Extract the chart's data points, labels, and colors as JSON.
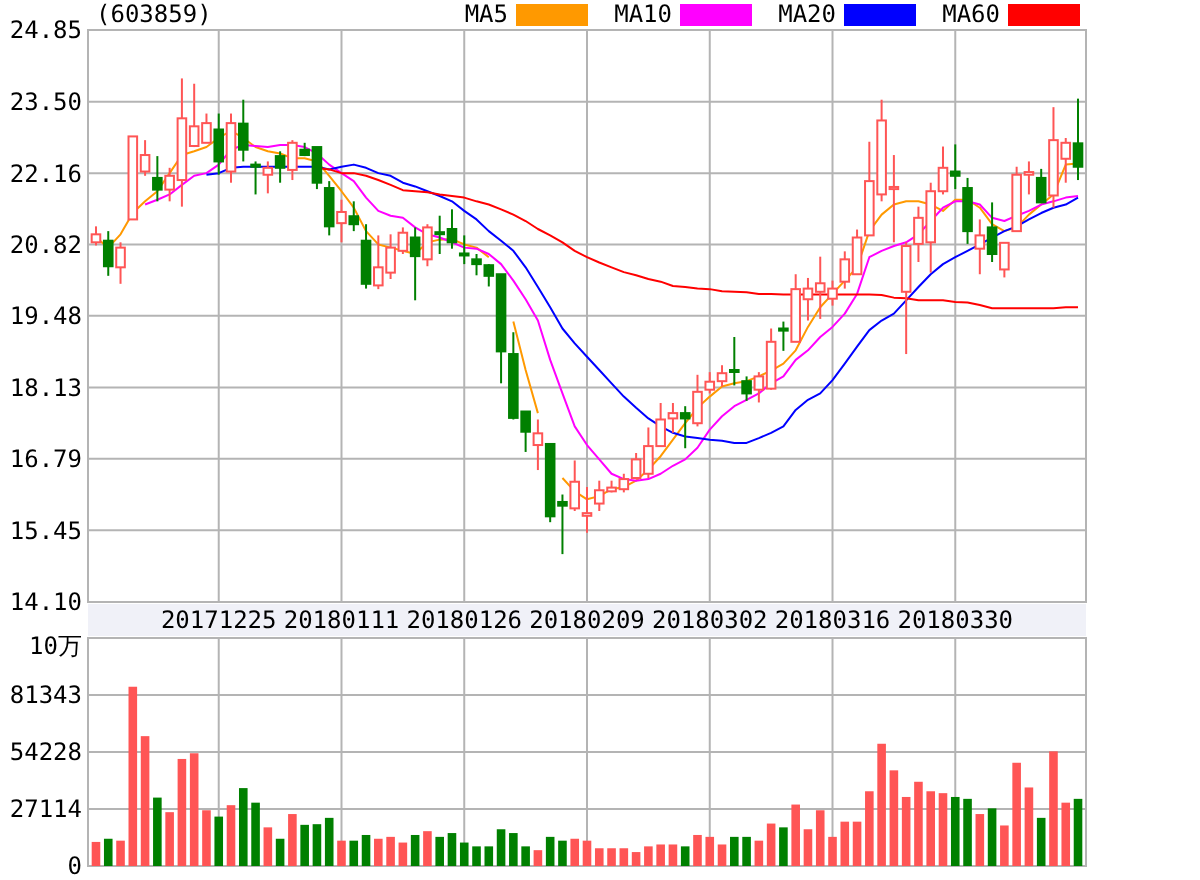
{
  "chart_data": [
    {
      "type": "candlestick",
      "title": "(603859)",
      "legend": "top",
      "grid": true,
      "categories": [
        null,
        null,
        null,
        null,
        null,
        null,
        null,
        null,
        null,
        null,
        "20171225",
        null,
        null,
        null,
        null,
        null,
        null,
        null,
        null,
        null,
        "20180111",
        null,
        null,
        null,
        null,
        null,
        null,
        null,
        null,
        null,
        "20180126",
        null,
        null,
        null,
        null,
        null,
        null,
        null,
        null,
        null,
        "20180209",
        null,
        null,
        null,
        null,
        null,
        null,
        null,
        null,
        null,
        "20180302",
        null,
        null,
        null,
        null,
        null,
        null,
        null,
        null,
        null,
        "20180316",
        null,
        null,
        null,
        null,
        null,
        null,
        null,
        null,
        null,
        "20180330",
        null,
        null,
        null,
        null,
        null,
        null,
        null,
        null,
        null,
        null
      ],
      "ylim": [
        14.1,
        24.85
      ],
      "yticks": [
        {
          "value": 14.1,
          "label": "14.10"
        },
        15.45,
        16.79,
        18.13,
        19.48,
        20.82,
        22.16,
        {
          "value": 23.5,
          "label": "23.50"
        },
        24.85
      ],
      "ohlc": [
        [
          20.86,
          21.16,
          20.8,
          21.01
        ],
        [
          20.89,
          21.07,
          20.23,
          20.41
        ],
        [
          20.39,
          20.86,
          20.08,
          20.76
        ],
        [
          21.29,
          22.85,
          21.29,
          22.85
        ],
        [
          22.19,
          22.78,
          22.11,
          22.5
        ],
        [
          22.07,
          22.48,
          21.63,
          21.85
        ],
        [
          21.85,
          22.26,
          21.63,
          22.11
        ],
        [
          22.03,
          23.94,
          21.53,
          23.19
        ],
        [
          22.67,
          23.84,
          22.65,
          23.04
        ],
        [
          22.73,
          23.28,
          22.73,
          23.1
        ],
        [
          22.98,
          23.28,
          22.13,
          22.38
        ],
        [
          22.19,
          23.28,
          21.98,
          23.1
        ],
        [
          23.09,
          23.54,
          22.38,
          22.6
        ],
        [
          22.32,
          22.38,
          21.76,
          22.28
        ],
        [
          22.13,
          22.38,
          21.78,
          22.26
        ],
        [
          22.48,
          22.57,
          21.98,
          22.26
        ],
        [
          22.22,
          22.78,
          22.03,
          22.73
        ],
        [
          22.6,
          22.73,
          22.48,
          22.5
        ],
        [
          22.65,
          22.65,
          21.86,
          21.98
        ],
        [
          21.88,
          22.01,
          20.99,
          21.16
        ],
        [
          21.22,
          21.66,
          20.86,
          21.43
        ],
        [
          21.35,
          21.63,
          21.07,
          21.2
        ],
        [
          20.89,
          21.2,
          19.99,
          20.08
        ],
        [
          20.05,
          20.99,
          19.98,
          20.39
        ],
        [
          20.29,
          21.01,
          20.17,
          20.76
        ],
        [
          20.7,
          21.14,
          20.64,
          21.04
        ],
        [
          20.95,
          21.14,
          19.77,
          20.6
        ],
        [
          20.54,
          21.2,
          20.41,
          21.14
        ],
        [
          21.05,
          21.36,
          20.64,
          21.03
        ],
        [
          21.11,
          21.48,
          20.74,
          20.86
        ],
        [
          20.65,
          20.99,
          20.45,
          20.64
        ],
        [
          20.54,
          20.64,
          20.24,
          20.45
        ],
        [
          20.43,
          20.45,
          20.03,
          20.23
        ],
        [
          20.26,
          20.26,
          18.21,
          18.81
        ],
        [
          18.76,
          19.17,
          17.53,
          17.56
        ],
        [
          17.68,
          17.68,
          16.92,
          17.3
        ],
        [
          17.05,
          17.53,
          16.58,
          17.27
        ],
        [
          17.07,
          17.07,
          15.6,
          15.71
        ],
        [
          15.98,
          16.12,
          15.0,
          15.91
        ],
        [
          15.86,
          16.76,
          15.81,
          16.36
        ],
        [
          15.72,
          16.26,
          15.4,
          15.77
        ],
        [
          15.95,
          16.38,
          15.81,
          16.2
        ],
        [
          16.18,
          16.38,
          16.16,
          16.25
        ],
        [
          16.22,
          16.51,
          16.16,
          16.41
        ],
        [
          16.43,
          16.9,
          16.41,
          16.78
        ],
        [
          16.51,
          17.38,
          16.43,
          17.03
        ],
        [
          17.03,
          17.84,
          17.03,
          17.53
        ],
        [
          17.55,
          17.84,
          17.28,
          17.65
        ],
        [
          17.65,
          17.78,
          16.99,
          17.55
        ],
        [
          17.46,
          18.37,
          17.4,
          18.05
        ],
        [
          18.09,
          18.42,
          18.02,
          18.24
        ],
        [
          18.25,
          18.55,
          18.15,
          18.4
        ],
        [
          18.46,
          19.08,
          18.17,
          18.44
        ],
        [
          18.25,
          18.34,
          17.88,
          18.02
        ],
        [
          18.09,
          18.42,
          17.85,
          18.34
        ],
        [
          18.11,
          19.24,
          18.09,
          18.99
        ],
        [
          19.24,
          19.37,
          18.82,
          19.2
        ],
        [
          18.99,
          20.26,
          18.99,
          19.98
        ],
        [
          19.79,
          20.19,
          19.39,
          19.99
        ],
        [
          19.93,
          20.59,
          19.42,
          20.09
        ],
        [
          19.8,
          20.14,
          19.67,
          19.99
        ],
        [
          20.12,
          20.69,
          19.99,
          20.54
        ],
        [
          20.26,
          21.1,
          20.26,
          20.95
        ],
        [
          20.99,
          22.75,
          20.99,
          22.01
        ],
        [
          21.76,
          23.54,
          21.63,
          23.15
        ],
        [
          21.86,
          22.5,
          20.86,
          21.9
        ],
        [
          19.93,
          20.86,
          18.76,
          20.79
        ],
        [
          20.83,
          21.53,
          20.49,
          21.32
        ],
        [
          20.86,
          21.98,
          20.29,
          21.82
        ],
        [
          21.82,
          22.66,
          21.76,
          22.26
        ],
        [
          22.19,
          22.7,
          21.86,
          22.11
        ],
        [
          21.88,
          22.07,
          20.83,
          21.07
        ],
        [
          20.74,
          21.29,
          20.26,
          20.99
        ],
        [
          21.14,
          21.61,
          20.49,
          20.64
        ],
        [
          20.35,
          20.85,
          20.2,
          20.85
        ],
        [
          21.07,
          22.28,
          21.07,
          22.13
        ],
        [
          22.13,
          22.38,
          21.76,
          22.18
        ],
        [
          22.07,
          22.24,
          21.61,
          21.61
        ],
        [
          21.74,
          23.4,
          21.51,
          22.78
        ],
        [
          22.43,
          22.82,
          21.98,
          22.73
        ],
        [
          22.72,
          23.56,
          22.03,
          22.28
        ]
      ],
      "colors": [
        "#ff5555",
        "#008000",
        "#ff5555",
        "#ff5555",
        "#ff5555",
        "#008000",
        "#ff5555",
        "#ff5555",
        "#ff5555",
        "#ff5555",
        "#008000",
        "#ff5555",
        "#008000",
        "#008000",
        "#ff5555",
        "#008000",
        "#ff5555",
        "#008000",
        "#008000",
        "#008000",
        "#ff5555",
        "#008000",
        "#008000",
        "#ff5555",
        "#ff5555",
        "#ff5555",
        "#008000",
        "#ff5555",
        "#008000",
        "#008000",
        "#008000",
        "#008000",
        "#008000",
        "#008000",
        "#008000",
        "#008000",
        "#ff5555",
        "#008000",
        "#008000",
        "#ff5555",
        "#ff5555",
        "#ff5555",
        "#ff5555",
        "#ff5555",
        "#ff5555",
        "#ff5555",
        "#ff5555",
        "#ff5555",
        "#008000",
        "#ff5555",
        "#ff5555",
        "#ff5555",
        "#008000",
        "#008000",
        "#ff5555",
        "#ff5555",
        "#008000",
        "#ff5555",
        "#ff5555",
        "#ff5555",
        "#ff5555",
        "#ff5555",
        "#ff5555",
        "#ff5555",
        "#ff5555",
        "#ff5555",
        "#ff5555",
        "#ff5555",
        "#ff5555",
        "#ff5555",
        "#008000",
        "#008000",
        "#ff5555",
        "#008000",
        "#ff5555",
        "#ff5555",
        "#ff5555",
        "#008000",
        "#ff5555",
        "#ff5555",
        "#008000"
      ],
      "series": [
        {
          "name": "MA5",
          "type": "line",
          "color": "#ff9900",
          "values": [
            20.95,
            20.76,
            21.01,
            21.41,
            21.63,
            21.82,
            22.16,
            22.5,
            22.57,
            22.65,
            22.82,
            22.96,
            22.82,
            22.65,
            22.57,
            22.53,
            22.44,
            22.44,
            22.38,
            22.11,
            21.82,
            21.51,
            21.07,
            20.82,
            20.76,
            20.7,
            20.64,
            20.86,
            20.91,
            20.92,
            20.82,
            20.76,
            20.58,
            null,
            19.37,
            18.46,
            17.65,
            null,
            16.43,
            16.18,
            16.03,
            16.09,
            16.22,
            16.26,
            16.38,
            16.59,
            16.84,
            17.15,
            17.46,
            17.75,
            17.96,
            18.15,
            18.21,
            18.25,
            18.34,
            18.45,
            18.58,
            18.83,
            19.27,
            19.64,
            19.89,
            20.14,
            20.39,
            21.07,
            21.38,
            21.57,
            21.63,
            21.63,
            21.57,
            21.45,
            21.66,
            21.66,
            21.51,
            21.2,
            21.07,
            21.14,
            21.38,
            21.57,
            21.76,
            22.32,
            22.34
          ]
        },
        {
          "name": "MA10",
          "type": "line",
          "color": "#ff00ff",
          "values": [
            null,
            null,
            null,
            null,
            21.57,
            21.66,
            21.76,
            21.94,
            22.11,
            22.16,
            22.32,
            22.6,
            22.69,
            22.67,
            22.65,
            22.69,
            22.69,
            22.65,
            22.53,
            22.32,
            22.16,
            22.01,
            21.7,
            21.45,
            21.36,
            21.32,
            21.14,
            21.01,
            20.95,
            20.86,
            20.76,
            20.74,
            20.64,
            20.45,
            20.14,
            19.79,
            19.39,
            18.65,
            18.02,
            17.4,
            17.05,
            16.78,
            16.51,
            16.41,
            16.38,
            16.41,
            16.51,
            16.66,
            16.78,
            17.0,
            17.34,
            17.59,
            17.78,
            17.9,
            18.02,
            18.21,
            18.34,
            18.65,
            18.83,
            19.08,
            19.27,
            19.52,
            19.89,
            20.58,
            20.7,
            20.79,
            20.86,
            21.01,
            21.26,
            21.51,
            21.63,
            21.63,
            21.57,
            21.32,
            21.26,
            21.36,
            21.45,
            21.57,
            21.63,
            21.7,
            21.73
          ]
        },
        {
          "name": "MA20",
          "type": "line",
          "color": "#0000ff",
          "values": [
            null,
            null,
            null,
            null,
            null,
            null,
            null,
            null,
            null,
            22.13,
            22.16,
            22.26,
            22.28,
            22.28,
            22.28,
            22.28,
            22.28,
            22.28,
            22.28,
            22.23,
            22.28,
            22.32,
            22.26,
            22.16,
            22.11,
            21.98,
            21.91,
            21.82,
            21.73,
            21.63,
            21.45,
            21.29,
            21.07,
            20.89,
            20.7,
            20.39,
            20.02,
            19.64,
            19.24,
            18.96,
            18.71,
            18.46,
            18.21,
            17.96,
            17.75,
            17.55,
            17.4,
            17.28,
            17.21,
            17.18,
            17.15,
            17.13,
            17.09,
            17.09,
            17.18,
            17.28,
            17.4,
            17.71,
            17.9,
            18.02,
            18.27,
            18.58,
            18.9,
            19.21,
            19.39,
            19.52,
            19.77,
            20.02,
            20.26,
            20.45,
            20.58,
            20.7,
            20.82,
            20.95,
            21.07,
            21.16,
            21.29,
            21.41,
            21.51,
            21.57,
            21.7
          ]
        },
        {
          "name": "MA60",
          "type": "line",
          "color": "#ff0000",
          "values": [
            null,
            null,
            null,
            null,
            null,
            null,
            null,
            null,
            null,
            null,
            null,
            null,
            null,
            null,
            null,
            null,
            null,
            null,
            22.26,
            22.23,
            22.16,
            22.16,
            22.11,
            22.03,
            21.94,
            21.84,
            21.82,
            21.8,
            21.76,
            21.73,
            21.7,
            21.63,
            21.57,
            21.48,
            21.38,
            21.26,
            21.11,
            20.99,
            20.86,
            20.7,
            20.58,
            20.48,
            20.39,
            20.3,
            20.24,
            20.17,
            20.12,
            20.04,
            20.02,
            19.99,
            19.98,
            19.94,
            19.93,
            19.92,
            19.89,
            19.89,
            19.88,
            19.88,
            19.88,
            19.88,
            19.88,
            19.88,
            19.88,
            19.88,
            19.87,
            19.82,
            19.81,
            19.77,
            19.77,
            19.77,
            19.74,
            19.73,
            19.68,
            19.62,
            19.62,
            19.62,
            19.62,
            19.62,
            19.62,
            19.64,
            19.64
          ]
        }
      ]
    },
    {
      "type": "bar",
      "tick_labels": "y",
      "grid": true,
      "categories": [
        null,
        null,
        null,
        null,
        null,
        null,
        null,
        null,
        null,
        null,
        "20171225",
        null,
        null,
        null,
        null,
        null,
        null,
        null,
        null,
        null,
        "20180111",
        null,
        null,
        null,
        null,
        null,
        null,
        null,
        null,
        null,
        "20180126",
        null,
        null,
        null,
        null,
        null,
        null,
        null,
        null,
        null,
        "20180209",
        null,
        null,
        null,
        null,
        null,
        null,
        null,
        null,
        null,
        "20180302",
        null,
        null,
        null,
        null,
        null,
        null,
        null,
        null,
        null,
        "20180316",
        null,
        null,
        null,
        null,
        null,
        null,
        null,
        null,
        null,
        "20180330",
        null,
        null,
        null,
        null,
        null,
        null,
        null,
        null,
        null,
        null
      ],
      "ylabel": "10万",
      "ylim": [
        0,
        108457
      ],
      "yticks": [
        0,
        27114,
        54228,
        81343
      ],
      "values": [
        11450,
        12960,
        12050,
        85270,
        61770,
        32540,
        25610,
        50920,
        53630,
        26510,
        23500,
        28930,
        37060,
        30130,
        18380,
        12960,
        24710,
        19580,
        19890,
        22900,
        12050,
        12050,
        14760,
        12960,
        13860,
        11150,
        14760,
        16570,
        13860,
        15670,
        11150,
        9340,
        9340,
        17480,
        15670,
        9340,
        7530,
        13860,
        12050,
        12960,
        12050,
        8440,
        8440,
        8440,
        6630,
        9340,
        10240,
        10240,
        9340,
        14760,
        13860,
        10240,
        13860,
        13860,
        12050,
        20190,
        18380,
        29230,
        17480,
        26510,
        13860,
        21090,
        21090,
        35550,
        58150,
        45500,
        32840,
        40070,
        35550,
        34650,
        32840,
        31940,
        24710,
        27420,
        19280,
        49110,
        37360,
        22900,
        54540,
        30130,
        31940
      ],
      "colors": [
        "#ff5555",
        "#008000",
        "#ff5555",
        "#ff5555",
        "#ff5555",
        "#008000",
        "#ff5555",
        "#ff5555",
        "#ff5555",
        "#ff5555",
        "#008000",
        "#ff5555",
        "#008000",
        "#008000",
        "#ff5555",
        "#008000",
        "#ff5555",
        "#008000",
        "#008000",
        "#008000",
        "#ff5555",
        "#008000",
        "#008000",
        "#ff5555",
        "#ff5555",
        "#ff5555",
        "#008000",
        "#ff5555",
        "#008000",
        "#008000",
        "#008000",
        "#008000",
        "#008000",
        "#008000",
        "#008000",
        "#008000",
        "#ff5555",
        "#008000",
        "#008000",
        "#ff5555",
        "#ff5555",
        "#ff5555",
        "#ff5555",
        "#ff5555",
        "#ff5555",
        "#ff5555",
        "#ff5555",
        "#ff5555",
        "#008000",
        "#ff5555",
        "#ff5555",
        "#ff5555",
        "#008000",
        "#008000",
        "#ff5555",
        "#ff5555",
        "#008000",
        "#ff5555",
        "#ff5555",
        "#ff5555",
        "#ff5555",
        "#ff5555",
        "#ff5555",
        "#ff5555",
        "#ff5555",
        "#ff5555",
        "#ff5555",
        "#ff5555",
        "#ff5555",
        "#ff5555",
        "#008000",
        "#008000",
        "#ff5555",
        "#008000",
        "#ff5555",
        "#ff5555",
        "#ff5555",
        "#008000",
        "#ff5555",
        "#ff5555",
        "#008000"
      ]
    }
  ]
}
